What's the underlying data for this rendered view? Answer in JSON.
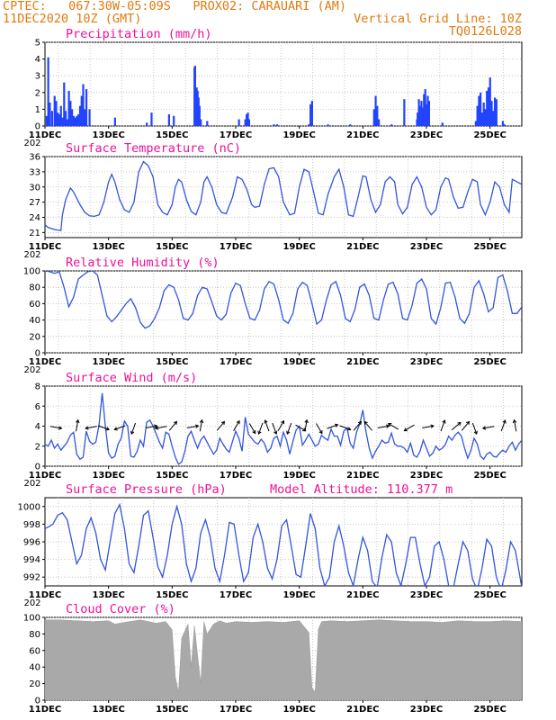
{
  "header": {
    "line1_left": "CPTEC:   067:30W-05:09S   PROX02: CARAUARI (AM)",
    "line2_left": "11DEC2020 10Z (GMT)",
    "line2_right": "Vertical Grid Line: 10Z",
    "line3_right": "TQ0126L028"
  },
  "x_axis": {
    "labels": [
      "11DEC",
      "13DEC",
      "15DEC",
      "17DEC",
      "19DEC",
      "21DEC",
      "23DEC",
      "25DEC"
    ],
    "stub": "202"
  },
  "chart_data": [
    {
      "type": "bar",
      "title": "Precipitation (mm/h)",
      "ylim": [
        0,
        5
      ],
      "yticks": [
        "0",
        "1",
        "2",
        "3",
        "4",
        "5"
      ],
      "x": [
        0.05,
        0.1,
        0.15,
        0.22,
        0.3,
        0.35,
        0.4,
        0.45,
        0.5,
        0.55,
        0.6,
        0.65,
        0.7,
        0.75,
        0.8,
        0.85,
        0.9,
        0.95,
        1.0,
        1.05,
        1.1,
        1.15,
        1.2,
        1.25,
        1.3,
        1.4,
        2.2,
        3.2,
        3.35,
        3.9,
        4.05,
        4.7,
        4.72,
        4.74,
        4.77,
        4.8,
        4.83,
        4.86,
        4.9,
        5.1,
        6.1,
        6.3,
        6.34,
        6.38,
        6.42,
        7.2,
        7.3,
        8.3,
        8.35,
        8.4,
        8.9,
        9.6,
        10.35,
        10.4,
        10.45,
        10.5,
        10.9,
        11.3,
        11.7,
        11.72,
        11.76,
        11.8,
        11.84,
        11.88,
        11.92,
        11.96,
        12.0,
        12.04,
        12.08,
        12.5,
        13.55,
        13.6,
        13.65,
        13.7,
        13.75,
        13.8,
        13.85,
        13.9,
        13.95,
        14.0,
        14.05,
        14.1,
        14.15,
        14.2,
        14.4,
        14.45
      ],
      "values": [
        0.6,
        4.1,
        1.4,
        0.9,
        1.8,
        1.5,
        0.8,
        0.7,
        1.2,
        0.5,
        2.6,
        0.9,
        0.4,
        2.1,
        1.5,
        1.0,
        0.6,
        0.5,
        0.6,
        0.7,
        1.2,
        1.8,
        2.5,
        1.0,
        2.2,
        1.0,
        0.5,
        0.2,
        0.8,
        0.7,
        0.6,
        3.5,
        3.6,
        0.8,
        2.3,
        2.1,
        1.7,
        1.2,
        0.4,
        0.3,
        0.4,
        0.4,
        0.7,
        0.8,
        0.4,
        0.1,
        0.1,
        0.1,
        1.3,
        1.5,
        0.1,
        0.1,
        1.0,
        1.8,
        1.2,
        0.4,
        0.1,
        1.6,
        0.4,
        0.8,
        1.6,
        1.2,
        1.5,
        1.1,
        1.9,
        2.2,
        1.3,
        1.8,
        1.5,
        0.2,
        0.3,
        1.2,
        1.8,
        2.0,
        0.8,
        1.4,
        1.0,
        2.1,
        2.3,
        2.9,
        1.5,
        0.9,
        1.7,
        1.6,
        0.3,
        0.1
      ]
    },
    {
      "type": "line",
      "title": "Surface Temperature (nC)",
      "ylim": [
        20,
        36
      ],
      "yticks": [
        "21",
        "24",
        "27",
        "30",
        "33",
        "36"
      ],
      "x": [
        0,
        0.1,
        0.2,
        0.3,
        0.4,
        0.5,
        0.55,
        0.65,
        0.8,
        0.9,
        1.1,
        1.25,
        1.4,
        1.55,
        1.7,
        1.85,
        2.0,
        2.1,
        2.2,
        2.35,
        2.5,
        2.65,
        2.8,
        2.95,
        3.1,
        3.25,
        3.4,
        3.55,
        3.7,
        3.85,
        4.0,
        4.1,
        4.2,
        4.3,
        4.45,
        4.6,
        4.75,
        4.9,
        5.0,
        5.1,
        5.25,
        5.4,
        5.55,
        5.7,
        5.9,
        6.05,
        6.2,
        6.35,
        6.5,
        6.6,
        6.75,
        6.9,
        7.05,
        7.2,
        7.35,
        7.5,
        7.7,
        7.85,
        8.0,
        8.15,
        8.3,
        8.45,
        8.6,
        8.75,
        8.9,
        9.1,
        9.25,
        9.4,
        9.55,
        9.7,
        9.85,
        10.0,
        10.1,
        10.25,
        10.4,
        10.55,
        10.7,
        10.85,
        11.0,
        11.1,
        11.25,
        11.4,
        11.55,
        11.7,
        11.85,
        12.0,
        12.15,
        12.3,
        12.45,
        12.6,
        12.7,
        12.85,
        13.0,
        13.15,
        13.3,
        13.45,
        13.6,
        13.7,
        13.85,
        14.0,
        14.15,
        14.3,
        14.45,
        14.6,
        14.7,
        14.85,
        15.0
      ],
      "values": [
        22.5,
        22.0,
        21.8,
        21.6,
        21.5,
        21.4,
        24.5,
        27.5,
        29.8,
        29.0,
        26.5,
        25.0,
        24.3,
        24.2,
        24.5,
        27.0,
        31.0,
        32.5,
        31.0,
        27.5,
        25.5,
        25.0,
        27.0,
        33.0,
        35.0,
        34.2,
        32.0,
        26.5,
        25.0,
        24.5,
        26.5,
        30.0,
        31.5,
        31.0,
        27.5,
        25.2,
        24.5,
        27.0,
        31.0,
        32.0,
        30.0,
        26.5,
        25.0,
        24.7,
        28.0,
        32.0,
        31.5,
        29.5,
        26.5,
        26.0,
        26.2,
        30.5,
        33.6,
        33.8,
        32.0,
        27.0,
        24.5,
        24.8,
        30.0,
        33.5,
        33.0,
        29.0,
        24.8,
        24.5,
        28.5,
        32.0,
        33.5,
        30.0,
        24.5,
        24.2,
        28.0,
        32.2,
        32.0,
        27.5,
        25.0,
        26.5,
        31.0,
        32.0,
        31.0,
        26.5,
        24.7,
        26.0,
        30.5,
        32.0,
        30.0,
        26.0,
        24.5,
        25.5,
        30.0,
        31.8,
        31.5,
        28.0,
        25.8,
        26.0,
        29.0,
        31.5,
        31.0,
        26.5,
        24.5,
        27.0,
        31.0,
        30.0,
        26.5,
        25.0,
        31.5,
        31.0,
        30.5
      ]
    },
    {
      "type": "line",
      "title": "Relative Humidity (%)",
      "ylim": [
        0,
        100
      ],
      "yticks": [
        "0",
        "20",
        "40",
        "60",
        "80",
        "100"
      ],
      "x": [
        0,
        0.15,
        0.3,
        0.45,
        0.6,
        0.75,
        0.9,
        1.05,
        1.2,
        1.35,
        1.5,
        1.65,
        1.8,
        1.95,
        2.1,
        2.25,
        2.4,
        2.55,
        2.7,
        2.85,
        3.0,
        3.15,
        3.3,
        3.45,
        3.6,
        3.75,
        3.9,
        4.05,
        4.2,
        4.35,
        4.5,
        4.65,
        4.8,
        4.95,
        5.1,
        5.25,
        5.4,
        5.55,
        5.7,
        5.85,
        6.0,
        6.15,
        6.3,
        6.45,
        6.6,
        6.75,
        6.9,
        7.05,
        7.2,
        7.35,
        7.5,
        7.65,
        7.8,
        7.95,
        8.1,
        8.25,
        8.4,
        8.55,
        8.7,
        8.85,
        9.0,
        9.15,
        9.3,
        9.45,
        9.6,
        9.75,
        9.9,
        10.05,
        10.2,
        10.35,
        10.5,
        10.65,
        10.8,
        10.95,
        11.1,
        11.25,
        11.4,
        11.55,
        11.7,
        11.85,
        12.0,
        12.15,
        12.3,
        12.45,
        12.6,
        12.75,
        12.9,
        13.05,
        13.2,
        13.35,
        13.5,
        13.65,
        13.8,
        13.95,
        14.1,
        14.25,
        14.4,
        14.55,
        14.7,
        14.85,
        15.0
      ],
      "values": [
        100,
        99,
        97,
        99,
        80,
        56,
        68,
        90,
        95,
        99,
        100,
        95,
        70,
        45,
        38,
        44,
        52,
        60,
        66,
        55,
        37,
        30,
        33,
        42,
        55,
        76,
        83,
        80,
        65,
        42,
        40,
        48,
        70,
        80,
        78,
        62,
        45,
        40,
        47,
        73,
        85,
        82,
        60,
        42,
        40,
        52,
        78,
        87,
        84,
        65,
        40,
        36,
        48,
        78,
        86,
        82,
        60,
        35,
        40,
        64,
        83,
        87,
        70,
        42,
        38,
        53,
        80,
        84,
        70,
        42,
        40,
        65,
        84,
        86,
        72,
        42,
        40,
        58,
        85,
        90,
        78,
        42,
        35,
        55,
        85,
        86,
        68,
        42,
        36,
        48,
        80,
        88,
        72,
        50,
        55,
        92,
        95,
        75,
        48,
        48,
        56
      ]
    },
    {
      "type": "line",
      "title": "Surface Wind (m/s)",
      "ylim": [
        0,
        8
      ],
      "yticks": [
        "0",
        "2",
        "4",
        "6",
        "8"
      ],
      "x": [
        0,
        0.1,
        0.2,
        0.3,
        0.4,
        0.5,
        0.6,
        0.7,
        0.8,
        0.9,
        1.0,
        1.1,
        1.2,
        1.3,
        1.4,
        1.5,
        1.6,
        1.7,
        1.8,
        1.9,
        2.0,
        2.1,
        2.2,
        2.3,
        2.4,
        2.5,
        2.6,
        2.7,
        2.8,
        2.9,
        3.0,
        3.1,
        3.2,
        3.3,
        3.4,
        3.5,
        3.6,
        3.7,
        3.8,
        3.9,
        4.0,
        4.1,
        4.2,
        4.3,
        4.4,
        4.5,
        4.6,
        4.7,
        4.8,
        4.9,
        5.0,
        5.1,
        5.2,
        5.3,
        5.4,
        5.5,
        5.6,
        5.7,
        5.8,
        5.9,
        6.0,
        6.1,
        6.2,
        6.3,
        6.4,
        6.5,
        6.6,
        6.7,
        6.8,
        6.9,
        7.0,
        7.1,
        7.2,
        7.3,
        7.4,
        7.5,
        7.6,
        7.7,
        7.8,
        7.9,
        8.0,
        8.1,
        8.2,
        8.3,
        8.4,
        8.5,
        8.6,
        8.7,
        8.8,
        8.9,
        9.0,
        9.1,
        9.2,
        9.3,
        9.4,
        9.5,
        9.6,
        9.7,
        9.8,
        9.9,
        10.0,
        10.1,
        10.2,
        10.3,
        10.4,
        10.5,
        10.6,
        10.7,
        10.8,
        10.9,
        11.0,
        11.1,
        11.2,
        11.3,
        11.4,
        11.5,
        11.6,
        11.7,
        11.8,
        11.9,
        12.0,
        12.1,
        12.2,
        12.3,
        12.4,
        12.5,
        12.6,
        12.7,
        12.8,
        12.9,
        13.0,
        13.1,
        13.2,
        13.3,
        13.4,
        13.5,
        13.6,
        13.7,
        13.8,
        13.9,
        14.0,
        14.1,
        14.2,
        14.3,
        14.4,
        14.5,
        14.6,
        14.7,
        14.8,
        14.9,
        15.0
      ],
      "values": [
        2.2,
        2.0,
        2.6,
        1.8,
        2.2,
        1.6,
        2.0,
        2.4,
        3.1,
        3.4,
        1.2,
        0.7,
        0.9,
        3.5,
        2.5,
        2.2,
        2.4,
        4.1,
        7.3,
        4.0,
        1.3,
        0.8,
        1.0,
        2.2,
        2.8,
        4.5,
        4.0,
        1.0,
        0.9,
        1.5,
        2.6,
        2.0,
        4.4,
        4.6,
        4.0,
        3.2,
        2.4,
        1.8,
        3.4,
        3.2,
        2.0,
        0.9,
        0.2,
        0.4,
        1.5,
        3.0,
        3.5,
        2.6,
        1.8,
        2.6,
        3.0,
        2.4,
        1.8,
        1.2,
        1.6,
        2.8,
        2.2,
        1.7,
        1.4,
        2.5,
        3.5,
        2.8,
        1.5,
        4.9,
        3.2,
        2.8,
        2.4,
        2.2,
        2.7,
        2.3,
        1.4,
        1.8,
        2.8,
        3.0,
        2.0,
        3.4,
        2.6,
        1.2,
        2.5,
        3.6,
        4.0,
        2.1,
        2.6,
        3.2,
        2.6,
        2.0,
        2.2,
        3.1,
        2.8,
        2.6,
        3.7,
        3.0,
        3.0,
        2.1,
        3.5,
        3.8,
        2.3,
        1.8,
        3.4,
        4.2,
        5.6,
        3.4,
        1.8,
        0.8,
        1.5,
        2.0,
        2.6,
        2.3,
        2.4,
        3.3,
        2.2,
        2.0,
        2.0,
        1.8,
        1.4,
        2.3,
        1.1,
        0.9,
        1.5,
        2.6,
        1.8,
        1.0,
        1.3,
        2.0,
        1.6,
        1.8,
        2.2,
        3.0,
        2.6,
        3.1,
        3.4,
        3.0,
        1.8,
        0.8,
        1.6,
        2.8,
        2.2,
        1.0,
        0.7,
        1.2,
        1.4,
        1.0,
        0.9,
        1.3,
        1.6,
        1.4,
        2.0,
        2.4,
        1.6,
        2.2,
        2.6
      ]
    },
    {
      "type": "line",
      "title": "Surface Pressure (hPa)",
      "annotation": "Model Altitude: 110.377 m",
      "ylim": [
        991,
        1001
      ],
      "yticks": [
        "992",
        "994",
        "996",
        "998",
        "1000"
      ],
      "x": [
        0,
        0.12,
        0.25,
        0.4,
        0.55,
        0.7,
        0.85,
        1.0,
        1.15,
        1.3,
        1.45,
        1.6,
        1.75,
        1.9,
        2.05,
        2.2,
        2.35,
        2.5,
        2.65,
        2.8,
        2.95,
        3.1,
        3.25,
        3.4,
        3.55,
        3.7,
        3.85,
        4.0,
        4.15,
        4.3,
        4.45,
        4.6,
        4.75,
        4.9,
        5.05,
        5.2,
        5.35,
        5.5,
        5.65,
        5.8,
        5.95,
        6.1,
        6.25,
        6.4,
        6.55,
        6.7,
        6.85,
        7.0,
        7.15,
        7.3,
        7.45,
        7.6,
        7.75,
        7.9,
        8.05,
        8.2,
        8.35,
        8.5,
        8.65,
        8.8,
        8.95,
        9.1,
        9.25,
        9.4,
        9.55,
        9.7,
        9.85,
        10.0,
        10.15,
        10.3,
        10.45,
        10.6,
        10.75,
        10.9,
        11.05,
        11.2,
        11.35,
        11.5,
        11.65,
        11.8,
        11.95,
        12.1,
        12.25,
        12.4,
        12.55,
        12.7,
        12.85,
        13.0,
        13.15,
        13.3,
        13.45,
        13.6,
        13.75,
        13.9,
        14.05,
        14.2,
        14.35,
        14.5,
        14.65,
        14.8,
        15.0
      ],
      "values": [
        997.5,
        997.7,
        998.0,
        999.0,
        999.3,
        998.5,
        996.0,
        993.5,
        994.5,
        997.5,
        998.7,
        997.0,
        994.0,
        992.8,
        996.0,
        999.2,
        1000.2,
        997.5,
        993.5,
        992.5,
        995.5,
        999.0,
        999.5,
        996.5,
        993.2,
        992.0,
        994.5,
        998.0,
        1000.0,
        998.0,
        993.5,
        991.5,
        993.0,
        997.0,
        998.5,
        996.5,
        993.0,
        991.5,
        994.5,
        998.2,
        998.0,
        994.5,
        991.5,
        992.5,
        996.5,
        998.0,
        996.0,
        993.0,
        991.8,
        994.0,
        997.8,
        998.5,
        995.5,
        992.3,
        992.0,
        995.5,
        999.2,
        997.5,
        993.0,
        991.0,
        992.0,
        996.0,
        997.8,
        995.5,
        992.5,
        991.0,
        994.0,
        996.5,
        995.0,
        991.5,
        990.8,
        994.2,
        996.8,
        996.0,
        992.5,
        991.0,
        993.5,
        996.5,
        996.5,
        993.5,
        991.0,
        992.0,
        995.5,
        996.0,
        994.0,
        991.0,
        990.8,
        993.5,
        996.0,
        995.0,
        991.8,
        990.5,
        993.0,
        996.3,
        995.5,
        992.0,
        990.5,
        992.8,
        996.0,
        995.0,
        990.8
      ]
    },
    {
      "type": "area",
      "title": "Cloud Cover (%)",
      "ylim": [
        0,
        100
      ],
      "yticks": [
        "0",
        "20",
        "40",
        "60",
        "80",
        "100"
      ],
      "x": [
        0,
        0.5,
        1.0,
        1.5,
        2.0,
        2.2,
        2.5,
        3.0,
        3.5,
        3.8,
        4.0,
        4.1,
        4.2,
        4.3,
        4.5,
        4.6,
        4.7,
        4.9,
        5.0,
        5.1,
        5.3,
        5.5,
        5.7,
        6.0,
        6.5,
        7.0,
        7.5,
        8.0,
        8.3,
        8.4,
        8.5,
        8.6,
        8.7,
        9.0,
        9.5,
        10.0,
        10.5,
        11.0,
        11.5,
        12.0,
        12.5,
        13.0,
        13.5,
        14.0,
        14.5,
        15.0
      ],
      "values": [
        97,
        97,
        96,
        95,
        96,
        92,
        94,
        97,
        93,
        95,
        85,
        28,
        10,
        75,
        92,
        40,
        90,
        20,
        95,
        80,
        92,
        96,
        93,
        95,
        94,
        95,
        94,
        96,
        82,
        15,
        10,
        86,
        95,
        96,
        95,
        96,
        97,
        96,
        95,
        95,
        94,
        96,
        95,
        95,
        96,
        95
      ]
    }
  ],
  "wind_arrows": {
    "x": [
      0.3,
      1.0,
      1.5,
      1.8,
      2.4,
      2.8,
      3.3,
      3.7,
      4.0,
      4.6,
      4.9,
      5.5,
      6.0,
      6.5,
      6.8,
      7.0,
      7.2,
      7.4,
      7.7,
      8.0,
      8.2,
      8.6,
      9.0,
      9.4,
      9.8,
      10.2,
      10.6,
      11.0,
      11.5,
      12.0,
      12.5,
      12.9,
      13.2,
      13.5,
      14.0,
      14.4,
      14.8
    ],
    "dir_deg": [
      100,
      10,
      260,
      110,
      250,
      200,
      80,
      260,
      40,
      80,
      10,
      40,
      30,
      150,
      200,
      340,
      160,
      30,
      200,
      120,
      10,
      150,
      70,
      110,
      40,
      320,
      80,
      300,
      240,
      80,
      20,
      50,
      40,
      160,
      260,
      20,
      350
    ]
  }
}
